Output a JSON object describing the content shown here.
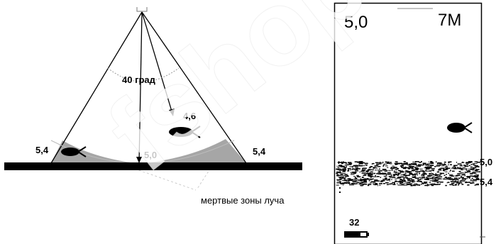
{
  "beam": {
    "angle_label": "40 град",
    "depth_left": "5,4",
    "depth_center": "5,0",
    "depth_right": "5,4",
    "fish_depth": "4,6",
    "dead_zone_caption": "мертвые зоны луча"
  },
  "sonar_screen": {
    "depth_reading": "5,0",
    "range": "7M",
    "scale_upper": "5,0",
    "scale_lower": "5,4",
    "battery_value": "32"
  },
  "watermark": "fshop.ru",
  "colors": {
    "ground": "#000000",
    "dead_zone": "#a6a6a6",
    "beam_lines": "#000000",
    "screen_border": "#000000"
  }
}
